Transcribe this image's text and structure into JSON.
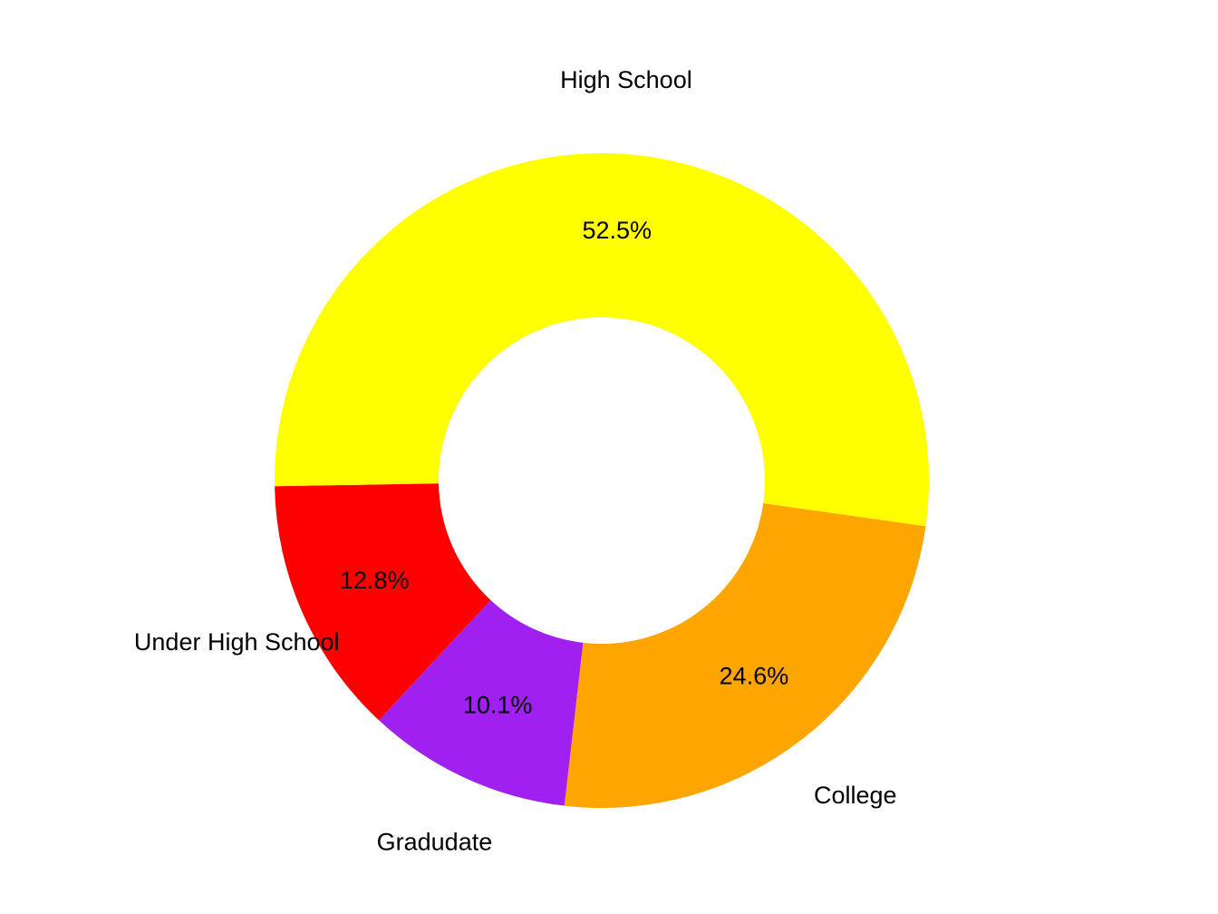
{
  "chart_data": {
    "type": "pie",
    "donut": true,
    "title": "",
    "categories": [
      "College",
      "Gradudate",
      "Under High School",
      "High School"
    ],
    "values": [
      24.6,
      10.1,
      12.8,
      52.5
    ],
    "value_labels": [
      "24.6%",
      "10.1%",
      "12.8%",
      "52.5%"
    ],
    "colors": [
      "#FFA500",
      "#A020F0",
      "#FF0000",
      "#FFFF00"
    ],
    "legend": "none",
    "grid": false
  }
}
